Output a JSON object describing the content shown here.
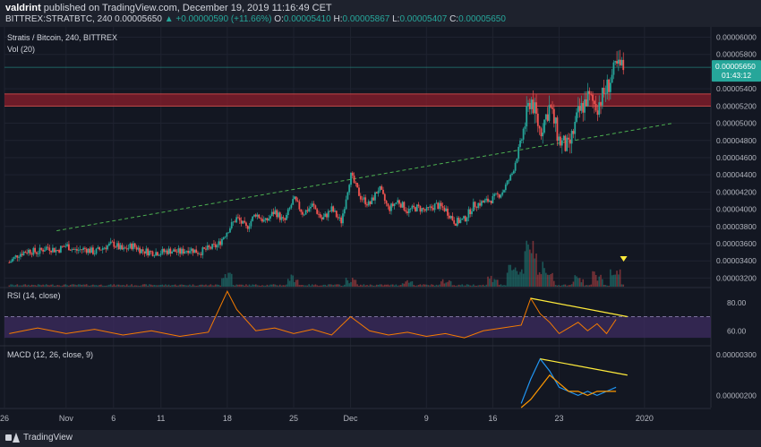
{
  "header": {
    "author": "valdrint",
    "published_text": "published on TradingView.com, December 19, 2019 11:16:49 CET",
    "symbol": "BITTREX:STRATBTC, 240",
    "price": "0.00005650",
    "change": "▲ +0.00000590 (+11.66%)",
    "o_label": "O:",
    "o": "0.00005410",
    "h_label": "H:",
    "h": "0.00005867",
    "l_label": "L:",
    "l": "0.00005407",
    "c_label": "C:",
    "c": "0.00005650"
  },
  "legend": {
    "main": "Stratis / Bitcoin, 240, BITTREX",
    "vol": "Vol (20)",
    "rsi": "RSI (14, close)",
    "macd": "MACD (12, 26, close, 9)"
  },
  "price_badge": {
    "value": "0.00005650",
    "countdown": "01:43:12"
  },
  "footer": {
    "brand": "TradingView"
  },
  "colors": {
    "background": "#131722",
    "up": "#26a69a",
    "down": "#ef5350",
    "trendline": "#4caf50",
    "zone": "#8b1e2b",
    "rsi_line": "#f57c00",
    "rsi_band": "#3b2a5c",
    "macd_line": "#2196f3",
    "signal_line": "#ff9800",
    "divergence": "#ffeb3b",
    "badge": "#26a69a"
  },
  "chart_data": {
    "type": "candlestick",
    "price_axis": {
      "min": 3.1e-05,
      "max": 6.12e-05,
      "ticks": [
        "0.00006000",
        "0.00005800",
        "0.00005400",
        "0.00005200",
        "0.00005000",
        "0.00004800",
        "0.00004600",
        "0.00004400",
        "0.00004200",
        "0.00004000",
        "0.00003800",
        "0.00003600",
        "0.00003400",
        "0.00003200"
      ]
    },
    "x_axis": {
      "ticks": [
        {
          "d": -0.5,
          "label": "26"
        },
        {
          "d": 6,
          "label": "Nov"
        },
        {
          "d": 11,
          "label": "6"
        },
        {
          "d": 16,
          "label": "11"
        },
        {
          "d": 23,
          "label": "18"
        },
        {
          "d": 30,
          "label": "25"
        },
        {
          "d": 36,
          "label": "Dec"
        },
        {
          "d": 44,
          "label": "9"
        },
        {
          "d": 51,
          "label": "16"
        },
        {
          "d": 58,
          "label": "23"
        },
        {
          "d": 67,
          "label": "2020"
        }
      ]
    },
    "price_path": [
      [
        0,
        3.38e-05
      ],
      [
        1,
        3.48e-05
      ],
      [
        2,
        3.52e-05
      ],
      [
        3,
        3.5e-05
      ],
      [
        4,
        3.56e-05
      ],
      [
        5,
        3.52e-05
      ],
      [
        6,
        3.58e-05
      ],
      [
        7,
        3.52e-05
      ],
      [
        8,
        3.54e-05
      ],
      [
        9,
        3.5e-05
      ],
      [
        10,
        3.56e-05
      ],
      [
        11,
        3.6e-05
      ],
      [
        12,
        3.52e-05
      ],
      [
        13,
        3.58e-05
      ],
      [
        14,
        3.52e-05
      ],
      [
        15,
        3.5e-05
      ],
      [
        16,
        3.5e-05
      ],
      [
        17,
        3.52e-05
      ],
      [
        18,
        3.5e-05
      ],
      [
        19,
        3.54e-05
      ],
      [
        20,
        3.5e-05
      ],
      [
        21,
        3.54e-05
      ],
      [
        22,
        3.58e-05
      ],
      [
        23,
        3.75e-05
      ],
      [
        24,
        3.9e-05
      ],
      [
        25,
        3.78e-05
      ],
      [
        26,
        3.95e-05
      ],
      [
        27,
        3.85e-05
      ],
      [
        28,
        3.98e-05
      ],
      [
        29,
        3.85e-05
      ],
      [
        30,
        4.12e-05
      ],
      [
        31,
        3.95e-05
      ],
      [
        32,
        4.05e-05
      ],
      [
        33,
        3.88e-05
      ],
      [
        34,
        4e-05
      ],
      [
        35,
        3.85e-05
      ],
      [
        36,
        4.4e-05
      ],
      [
        37,
        4.15e-05
      ],
      [
        38,
        4.05e-05
      ],
      [
        39,
        4.25e-05
      ],
      [
        40,
        4e-05
      ],
      [
        41,
        4.1e-05
      ],
      [
        42,
        3.98e-05
      ],
      [
        43,
        4.02e-05
      ],
      [
        44,
        3.98e-05
      ],
      [
        45,
        4.05e-05
      ],
      [
        46,
        4e-05
      ],
      [
        47,
        3.85e-05
      ],
      [
        48,
        3.88e-05
      ],
      [
        49,
        4.05e-05
      ],
      [
        50,
        4.08e-05
      ],
      [
        51,
        4.12e-05
      ],
      [
        52,
        4.2e-05
      ],
      [
        53,
        4.4e-05
      ],
      [
        54,
        4.8e-05
      ],
      [
        55,
        5.3e-05
      ],
      [
        56,
        4.9e-05
      ],
      [
        57,
        5.2e-05
      ],
      [
        58,
        4.8e-05
      ],
      [
        59,
        4.7e-05
      ],
      [
        60,
        5.1e-05
      ],
      [
        61,
        5.3e-05
      ],
      [
        62,
        5.2e-05
      ],
      [
        63,
        5.4e-05
      ],
      [
        64,
        5.65e-05
      ]
    ],
    "volume_axis_max": 100,
    "volume": [
      [
        23,
        30
      ],
      [
        30,
        20
      ],
      [
        36,
        15
      ],
      [
        42,
        12
      ],
      [
        46,
        12
      ],
      [
        51,
        20
      ],
      [
        53,
        35
      ],
      [
        54,
        40
      ],
      [
        55,
        100
      ],
      [
        56,
        40
      ],
      [
        57,
        25
      ],
      [
        60,
        20
      ],
      [
        62,
        25
      ],
      [
        64,
        30
      ]
    ],
    "last_volume_marker_day": 64.8,
    "trendline": [
      [
        5,
        3.75e-05
      ],
      [
        70,
        5e-05
      ]
    ],
    "resistance_zone": [
      5.2e-05,
      5.34e-05
    ],
    "current_price_line": 5.65e-05,
    "rsi": {
      "axis": {
        "min": 50,
        "max": 90,
        "ticks": [
          "80.00",
          "60.00"
        ]
      },
      "band": [
        55,
        70
      ],
      "values": [
        [
          0,
          58
        ],
        [
          3,
          62
        ],
        [
          6,
          58
        ],
        [
          9,
          61
        ],
        [
          12,
          57
        ],
        [
          15,
          60
        ],
        [
          18,
          56
        ],
        [
          21,
          59
        ],
        [
          23,
          88
        ],
        [
          24,
          75
        ],
        [
          26,
          60
        ],
        [
          28,
          62
        ],
        [
          30,
          58
        ],
        [
          32,
          61
        ],
        [
          34,
          57
        ],
        [
          36,
          70
        ],
        [
          38,
          60
        ],
        [
          40,
          57
        ],
        [
          42,
          59
        ],
        [
          44,
          56
        ],
        [
          46,
          58
        ],
        [
          48,
          55
        ],
        [
          50,
          60
        ],
        [
          52,
          62
        ],
        [
          54,
          64
        ],
        [
          55,
          83
        ],
        [
          56,
          72
        ],
        [
          57,
          66
        ],
        [
          58,
          58
        ],
        [
          59,
          62
        ],
        [
          60,
          66
        ],
        [
          61,
          60
        ],
        [
          62,
          65
        ],
        [
          63,
          58
        ],
        [
          64,
          68
        ]
      ],
      "divergence": [
        [
          55,
          83
        ],
        [
          65.2,
          70
        ]
      ]
    },
    "macd": {
      "axis": {
        "min": 1.7e-06,
        "max": 3.2e-06,
        "ticks": [
          "0.00000300",
          "0.00000200"
        ]
      },
      "macd_line": [
        [
          54,
          1.8e-06
        ],
        [
          55,
          2.4e-06
        ],
        [
          56,
          2.9e-06
        ],
        [
          57,
          2.6e-06
        ],
        [
          58,
          2.2e-06
        ],
        [
          59,
          2.1e-06
        ],
        [
          60,
          2e-06
        ],
        [
          61,
          2.1e-06
        ],
        [
          62,
          2e-06
        ],
        [
          63,
          2.1e-06
        ],
        [
          64,
          2.2e-06
        ]
      ],
      "signal_line": [
        [
          54,
          1.7e-06
        ],
        [
          55,
          1.9e-06
        ],
        [
          56,
          2.2e-06
        ],
        [
          57,
          2.5e-06
        ],
        [
          58,
          2.3e-06
        ],
        [
          59,
          2.1e-06
        ],
        [
          60,
          2.1e-06
        ],
        [
          61,
          2e-06
        ],
        [
          62,
          2.1e-06
        ],
        [
          63,
          2.1e-06
        ],
        [
          64,
          2.1e-06
        ]
      ],
      "divergence": [
        [
          56,
          2.9e-06
        ],
        [
          65.2,
          2.5e-06
        ]
      ]
    }
  }
}
